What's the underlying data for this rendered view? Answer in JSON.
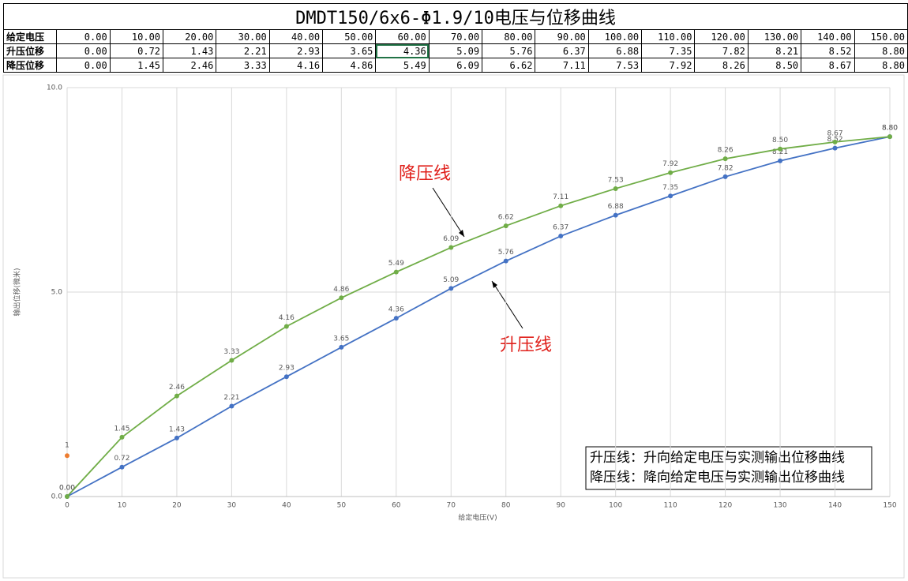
{
  "table": {
    "title": "DMDT150/6x6-Φ1.9/10电压与位移曲线",
    "rows": [
      [
        "给定电压",
        "0.00",
        "10.00",
        "20.00",
        "30.00",
        "40.00",
        "50.00",
        "60.00",
        "70.00",
        "80.00",
        "90.00",
        "100.00",
        "110.00",
        "120.00",
        "130.00",
        "140.00",
        "150.00"
      ],
      [
        "升压位移",
        "0.00",
        "0.72",
        "1.43",
        "2.21",
        "2.93",
        "3.65",
        "4.36",
        "5.09",
        "5.76",
        "6.37",
        "6.88",
        "7.35",
        "7.82",
        "8.21",
        "8.52",
        "8.80"
      ],
      [
        "降压位移",
        "0.00",
        "1.45",
        "2.46",
        "3.33",
        "4.16",
        "4.86",
        "5.49",
        "6.09",
        "6.62",
        "7.11",
        "7.53",
        "7.92",
        "8.26",
        "8.50",
        "8.67",
        "8.80"
      ]
    ]
  },
  "chart_data": {
    "type": "line",
    "x_label": "给定电压(V)",
    "y_label": "输出位移(微米)",
    "x": [
      0,
      10,
      20,
      30,
      40,
      50,
      60,
      70,
      80,
      90,
      100,
      110,
      120,
      130,
      140,
      150
    ],
    "series": [
      {
        "color": "#4472c4",
        "values": [
          0,
          0.72,
          1.43,
          2.21,
          2.93,
          3.65,
          4.36,
          5.09,
          5.76,
          6.37,
          6.88,
          7.35,
          7.82,
          8.21,
          8.52,
          8.8
        ],
        "value_labels": [
          "0.00",
          "0.72",
          "1.43",
          "2.21",
          "2.93",
          "3.65",
          "4.36",
          "5.09",
          "5.76",
          "6.37",
          "6.88",
          "7.35",
          "7.82",
          "8.21",
          "8.52",
          "8.80"
        ]
      },
      {
        "color": "#70ad47",
        "values": [
          0,
          1.45,
          2.46,
          3.33,
          4.16,
          4.86,
          5.49,
          6.09,
          6.62,
          7.11,
          7.53,
          7.92,
          8.26,
          8.5,
          8.67,
          8.8
        ],
        "value_labels": [
          "0.00",
          "1.45",
          "2.46",
          "3.33",
          "4.16",
          "4.86",
          "5.49",
          "6.09",
          "6.62",
          "7.11",
          "7.53",
          "7.92",
          "8.26",
          "8.50",
          "8.67",
          "8.80"
        ]
      }
    ],
    "extra_point": {
      "x": 0,
      "value": 1,
      "color": "#ed7d31"
    },
    "xlim": [
      0,
      150
    ],
    "ylim": [
      0,
      10
    ],
    "xticks": [
      0,
      10,
      20,
      30,
      40,
      50,
      60,
      70,
      80,
      90,
      100,
      110,
      120,
      130,
      140,
      150
    ],
    "yticks": [
      {
        "value": 0,
        "label": "0.0"
      },
      {
        "value": 5,
        "label": "5.0"
      },
      {
        "value": 10,
        "label": "10.0"
      }
    ],
    "grid": true,
    "annotations": [
      "降压线",
      "升压线"
    ],
    "note_lines": [
      "升压线：升向给定电压与实测输出位移曲线",
      "降压线：降向给定电压与实测输出位移曲线"
    ]
  }
}
